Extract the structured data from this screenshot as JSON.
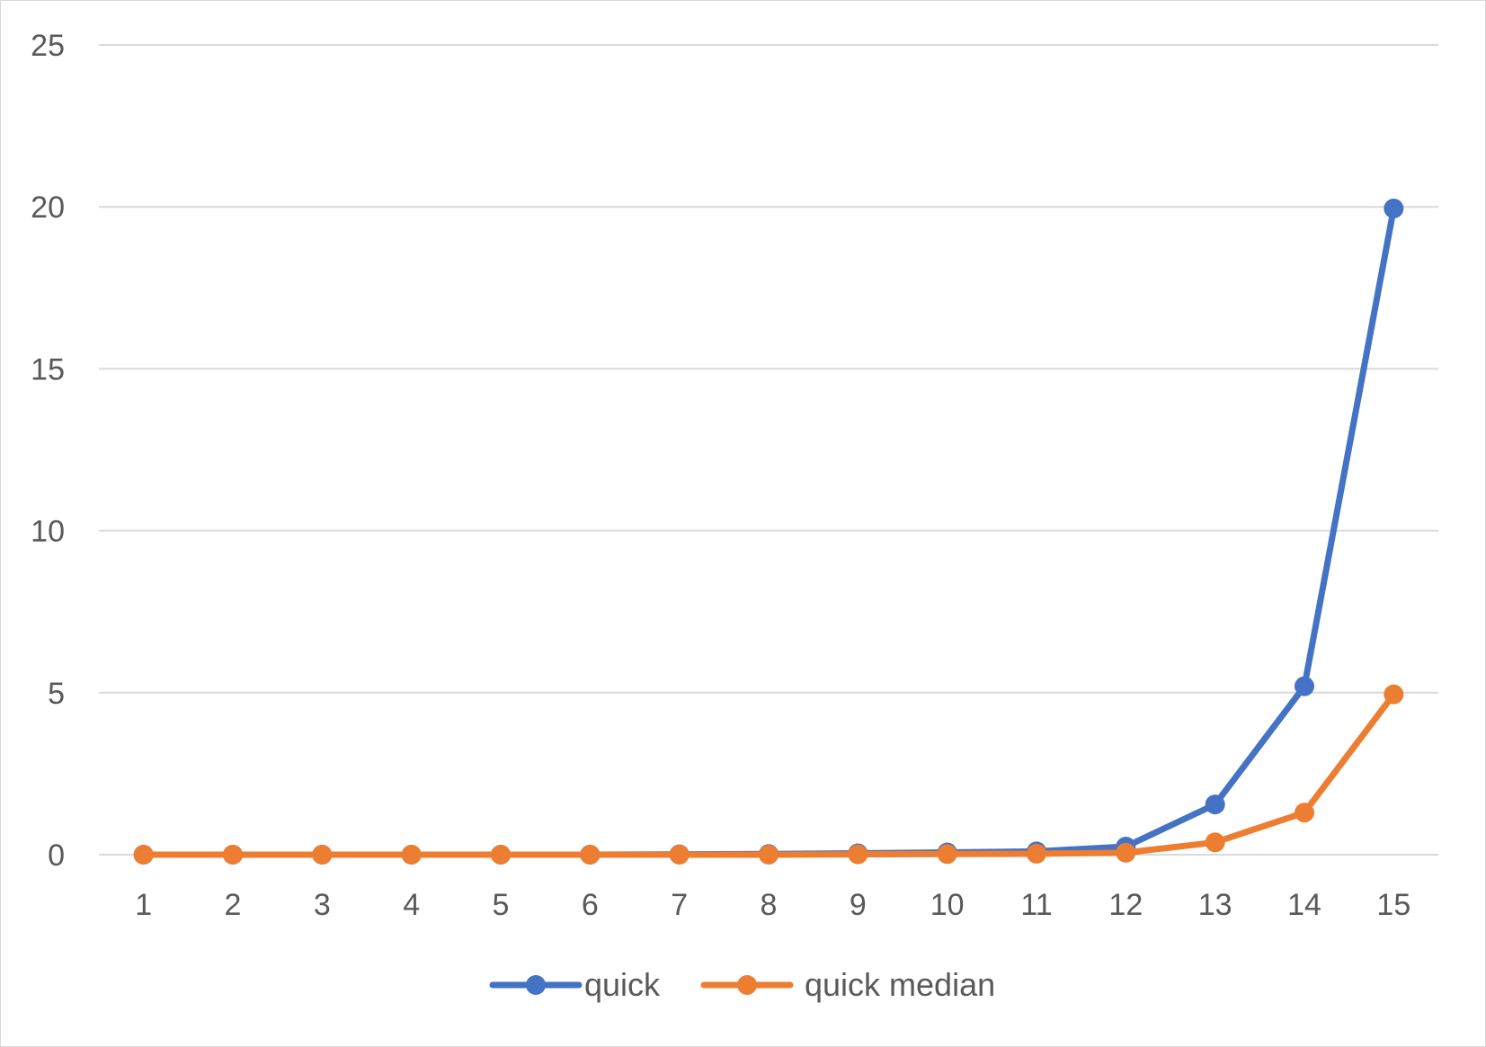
{
  "chart_data": {
    "type": "line",
    "title": "",
    "xlabel": "",
    "ylabel": "",
    "x": [
      "1",
      "2",
      "3",
      "4",
      "5",
      "6",
      "7",
      "8",
      "9",
      "10",
      "11",
      "12",
      "13",
      "14",
      "15"
    ],
    "ylim": [
      0,
      25
    ],
    "yticks": [
      0,
      5,
      10,
      15,
      20,
      25
    ],
    "grid": true,
    "legend_position": "bottom",
    "series": [
      {
        "name": "quick",
        "color": "#4472C4",
        "values": [
          0,
          0,
          0,
          0,
          0,
          0,
          0.01,
          0.02,
          0.04,
          0.07,
          0.1,
          0.25,
          1.55,
          5.2,
          19.95
        ]
      },
      {
        "name": "quick median",
        "color": "#ED7D31",
        "values": [
          0,
          0,
          0,
          0,
          0,
          0,
          0,
          0,
          0.01,
          0.02,
          0.03,
          0.06,
          0.38,
          1.3,
          4.95
        ]
      }
    ]
  }
}
